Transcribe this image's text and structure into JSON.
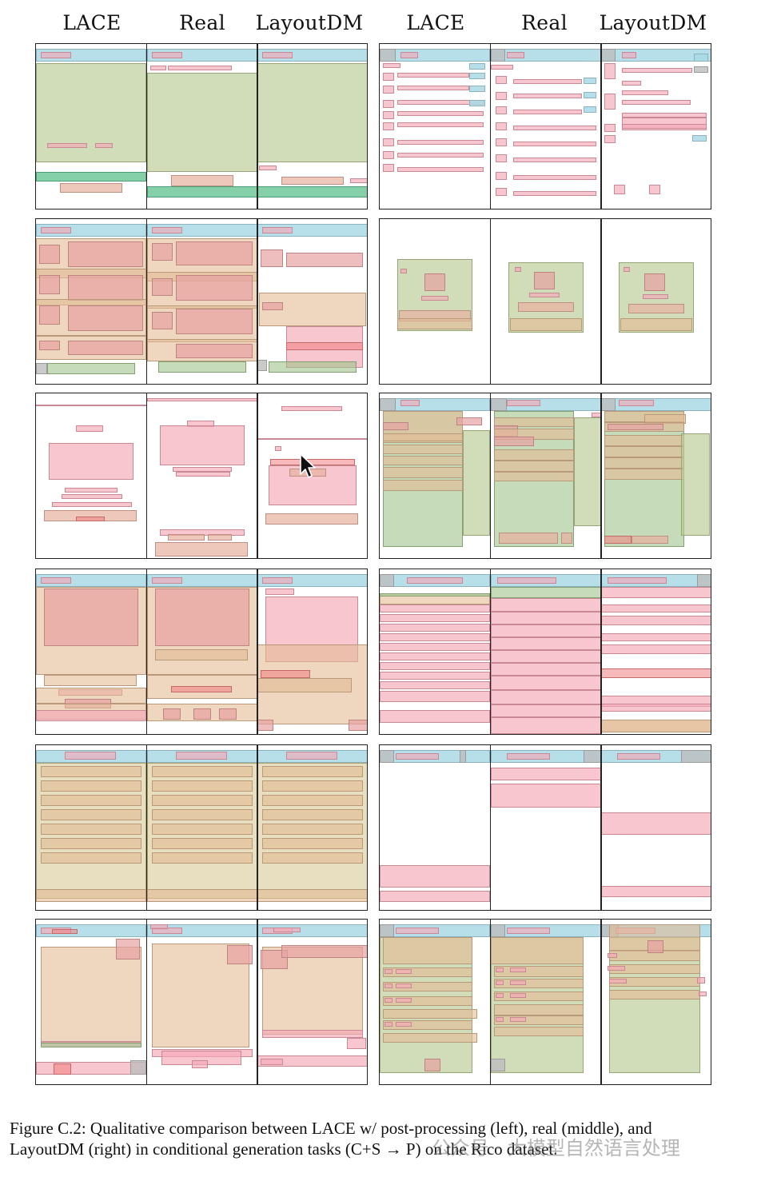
{
  "headers": {
    "left": [
      "LACE",
      "Real",
      "LayoutDM"
    ],
    "right": [
      "LACE",
      "Real",
      "LayoutDM"
    ]
  },
  "caption": {
    "line1": "Figure C.2:  Qualitative comparison between LACE w/ post-processing (left), real (middle), and",
    "line2": "LayoutDM (right) in conditional generation tasks (C+S → P) on the Rico dataset."
  },
  "watermark": "公众号 · 大模型自然语言处理",
  "colors": {
    "toolbar": "#a9d9e6",
    "image": "#b9c993",
    "text": "#f4a7b6",
    "icon": "#bdbdbd",
    "list_item": "#e2bb94",
    "card": "#d4c48a",
    "button": "#5cc08c",
    "text_button": "#e8b0a0",
    "background_image": "#9ec38a",
    "input": "#f08080",
    "web_view": "#e7a1a1"
  },
  "cursor_icon": "arrow-pointer-icon"
}
